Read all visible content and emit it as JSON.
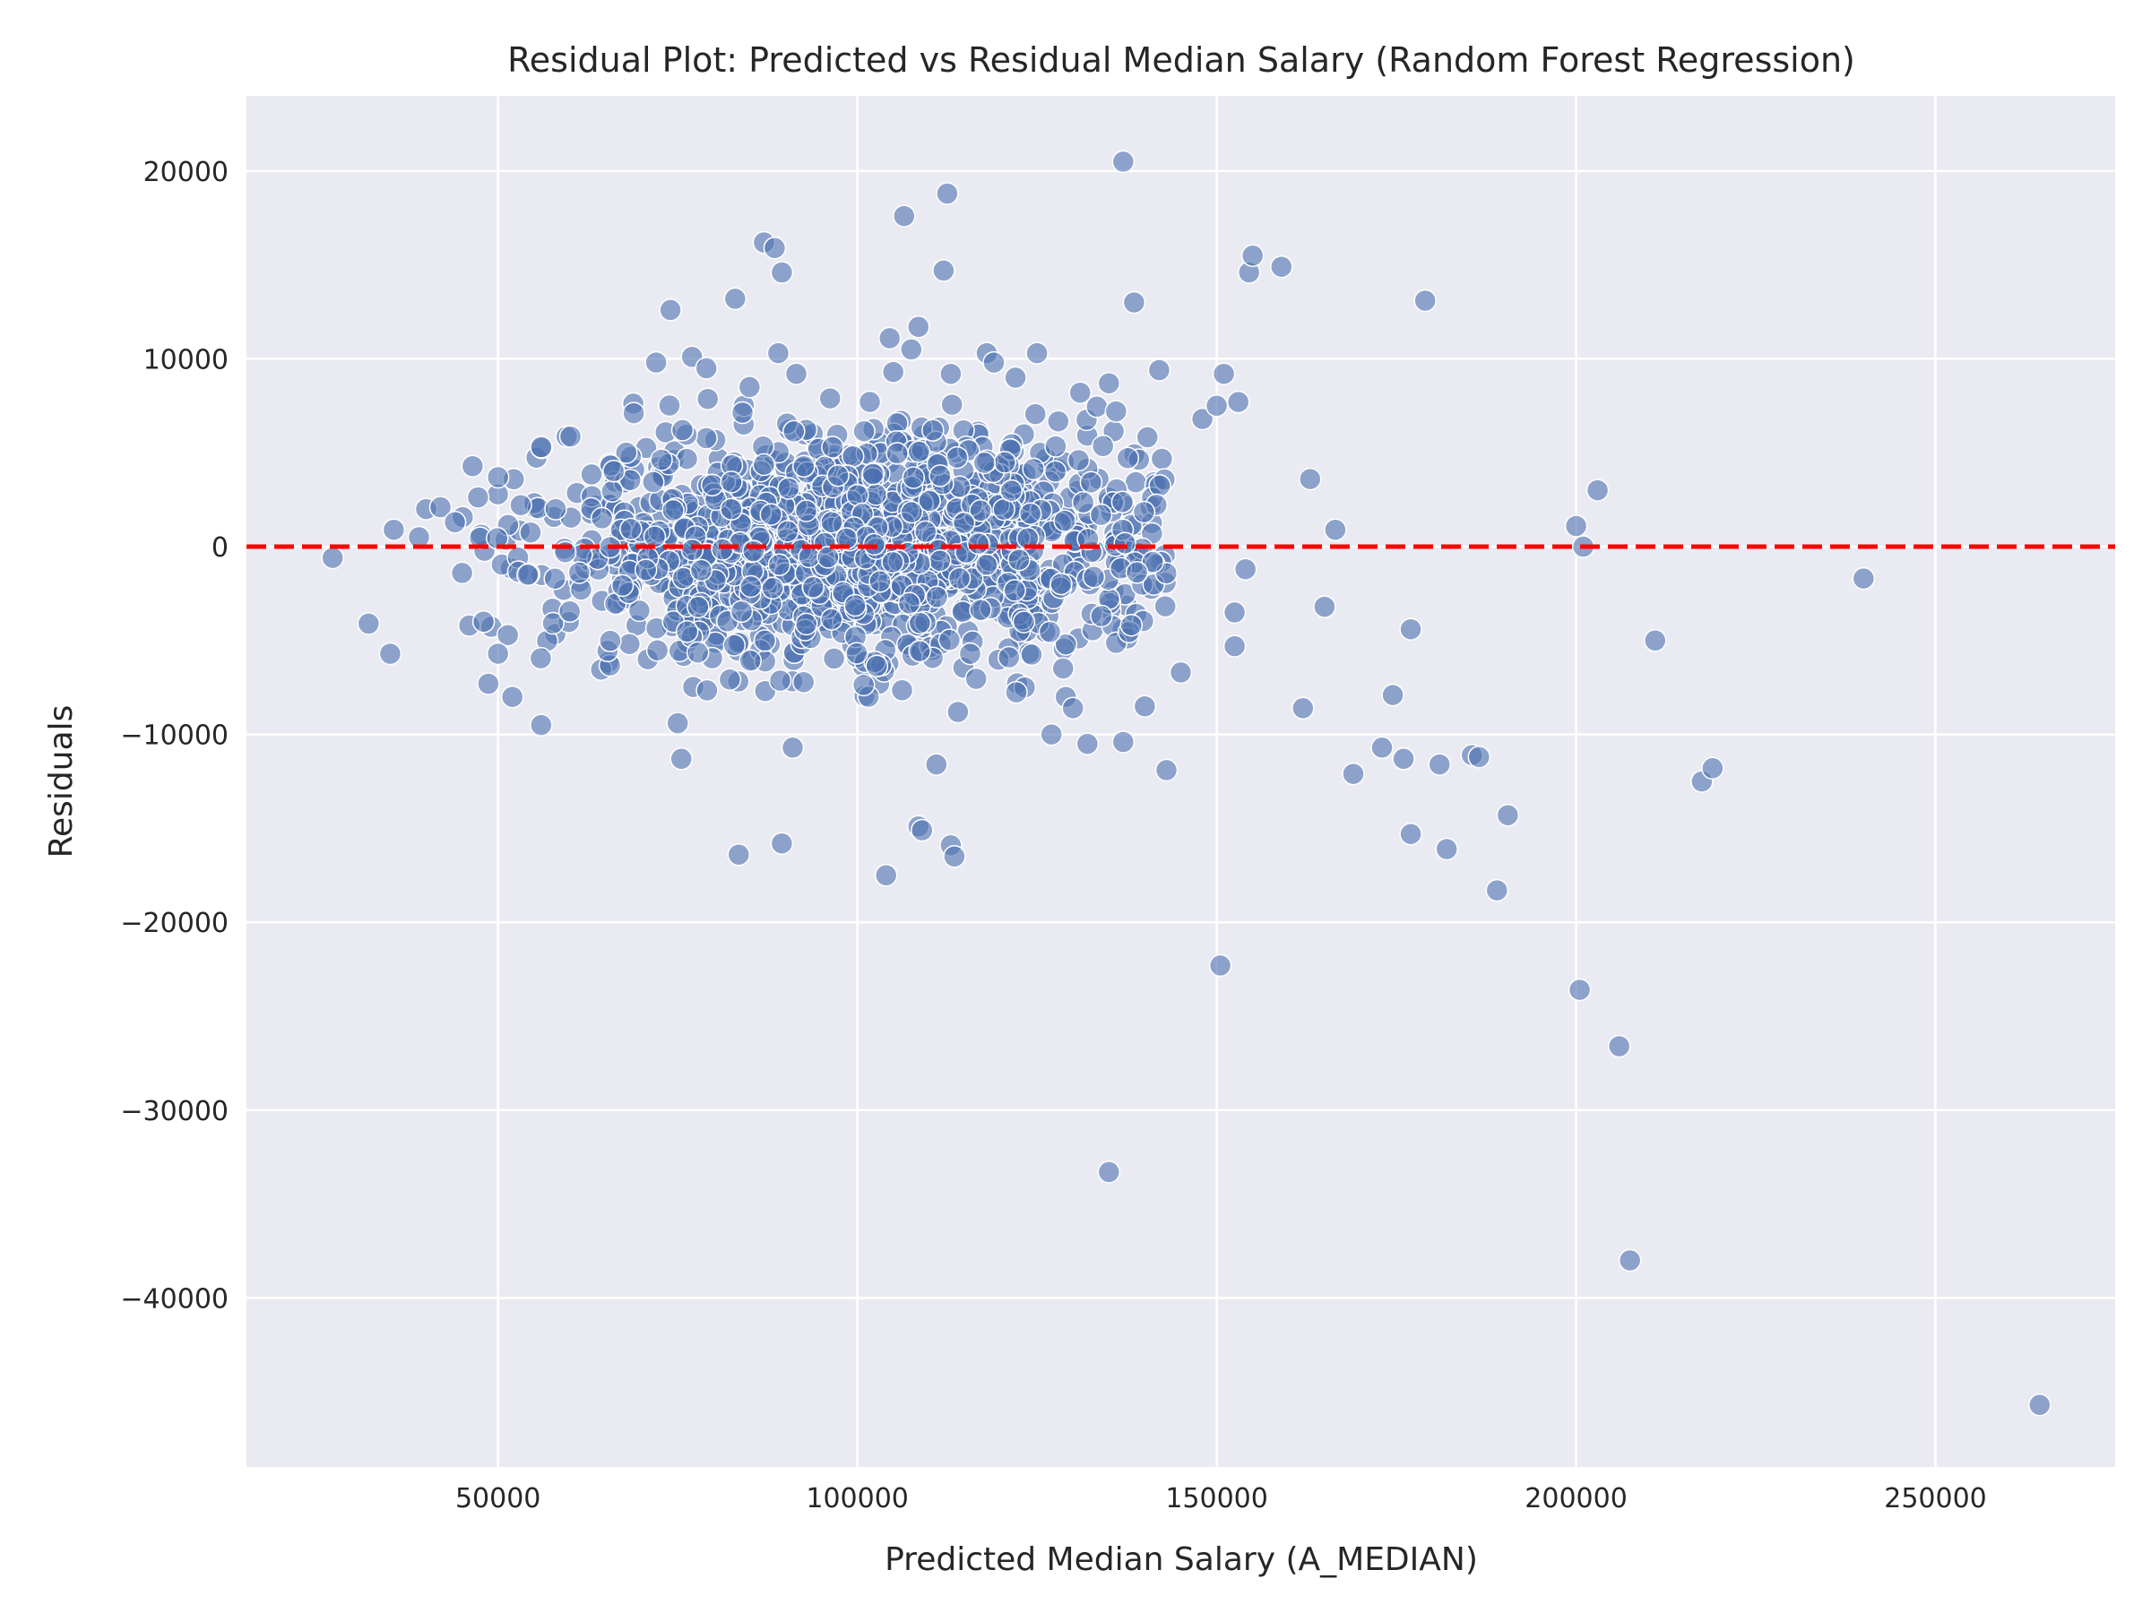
{
  "chart_data": {
    "type": "scatter",
    "title": "Residual Plot: Predicted vs Residual Median Salary (Random Forest Regression)",
    "xlabel": "Predicted Median Salary (A_MEDIAN)",
    "ylabel": "Residuals",
    "xlim": [
      15000,
      275000
    ],
    "ylim": [
      -49000,
      24000
    ],
    "x_ticks": [
      50000,
      100000,
      150000,
      200000,
      250000
    ],
    "x_tick_labels": [
      "50000",
      "100000",
      "150000",
      "200000",
      "250000"
    ],
    "y_ticks": [
      20000,
      10000,
      0,
      -10000,
      -20000,
      -30000,
      -40000
    ],
    "y_tick_labels": [
      "20000",
      "10000",
      "0",
      "−10000",
      "−20000",
      "−30000",
      "−40000"
    ],
    "grid": true,
    "background": "#eaeaf2",
    "point_color": "#4c72b0",
    "reference_line": {
      "y": 0,
      "color": "#ff0000",
      "style": "dashed"
    },
    "points_notable": [
      [
        27000,
        -600
      ],
      [
        32000,
        -4100
      ],
      [
        35000,
        -5700
      ],
      [
        35500,
        900
      ],
      [
        39000,
        500
      ],
      [
        40000,
        2000
      ],
      [
        42000,
        2100
      ],
      [
        44000,
        1300
      ],
      [
        45000,
        -1400
      ],
      [
        46000,
        -4200
      ],
      [
        48000,
        -4000
      ],
      [
        50000,
        -5700
      ],
      [
        50000,
        3700
      ],
      [
        52000,
        -8000
      ],
      [
        56000,
        -9500
      ],
      [
        56000,
        5300
      ],
      [
        72000,
        9800
      ],
      [
        74000,
        12600
      ],
      [
        75000,
        -9400
      ],
      [
        75500,
        -11300
      ],
      [
        77000,
        10100
      ],
      [
        79000,
        9500
      ],
      [
        83000,
        13200
      ],
      [
        83500,
        -16400
      ],
      [
        85000,
        8500
      ],
      [
        87000,
        16200
      ],
      [
        88500,
        15900
      ],
      [
        89000,
        10300
      ],
      [
        89500,
        14600
      ],
      [
        89500,
        -15800
      ],
      [
        91000,
        -10700
      ],
      [
        91500,
        9200
      ],
      [
        104000,
        -17500
      ],
      [
        104500,
        11100
      ],
      [
        105000,
        9300
      ],
      [
        106500,
        17600
      ],
      [
        107500,
        10500
      ],
      [
        108500,
        11700
      ],
      [
        108500,
        -14900
      ],
      [
        109000,
        -15100
      ],
      [
        110500,
        6200
      ],
      [
        111000,
        -11600
      ],
      [
        112000,
        14700
      ],
      [
        112500,
        18800
      ],
      [
        113000,
        -15900
      ],
      [
        113500,
        -16500
      ],
      [
        113000,
        9200
      ],
      [
        114000,
        -8800
      ],
      [
        118000,
        10300
      ],
      [
        119000,
        9800
      ],
      [
        122000,
        9000
      ],
      [
        125000,
        10300
      ],
      [
        127000,
        -10000
      ],
      [
        129000,
        -8000
      ],
      [
        130000,
        -8600
      ],
      [
        131000,
        8200
      ],
      [
        132000,
        -10500
      ],
      [
        135000,
        -33300
      ],
      [
        135000,
        8700
      ],
      [
        136000,
        7200
      ],
      [
        137000,
        20500
      ],
      [
        137000,
        -10400
      ],
      [
        138500,
        13000
      ],
      [
        140000,
        -8500
      ],
      [
        142000,
        9400
      ],
      [
        143000,
        -11900
      ],
      [
        145000,
        -6700
      ],
      [
        148000,
        6800
      ],
      [
        150000,
        7500
      ],
      [
        150500,
        -22300
      ],
      [
        151000,
        9200
      ],
      [
        152500,
        -3500
      ],
      [
        152500,
        -5300
      ],
      [
        153000,
        7700
      ],
      [
        154000,
        -1200
      ],
      [
        154500,
        14600
      ],
      [
        155000,
        15500
      ],
      [
        159000,
        14900
      ],
      [
        162000,
        -8600
      ],
      [
        163000,
        3600
      ],
      [
        165000,
        -3200
      ],
      [
        166500,
        900
      ],
      [
        169000,
        -12100
      ],
      [
        173000,
        -10700
      ],
      [
        174500,
        -7900
      ],
      [
        176000,
        -11300
      ],
      [
        177000,
        -4400
      ],
      [
        177000,
        -15300
      ],
      [
        179000,
        13100
      ],
      [
        181000,
        -11600
      ],
      [
        182000,
        -16100
      ],
      [
        185500,
        -11100
      ],
      [
        186500,
        -11200
      ],
      [
        189000,
        -18300
      ],
      [
        190500,
        -14300
      ],
      [
        200000,
        1100
      ],
      [
        200500,
        -23600
      ],
      [
        201000,
        0
      ],
      [
        203000,
        3000
      ],
      [
        206000,
        -26600
      ],
      [
        207500,
        -38000
      ],
      [
        211000,
        -5000
      ],
      [
        217500,
        -12500
      ],
      [
        219000,
        -11800
      ],
      [
        240000,
        -1700
      ],
      [
        264500,
        -45700
      ]
    ],
    "dense_cluster": {
      "description": "about 1500 points",
      "x_center": 100000,
      "x_range": [
        45000,
        143000
      ],
      "y_range": [
        -8000,
        8000
      ]
    }
  }
}
